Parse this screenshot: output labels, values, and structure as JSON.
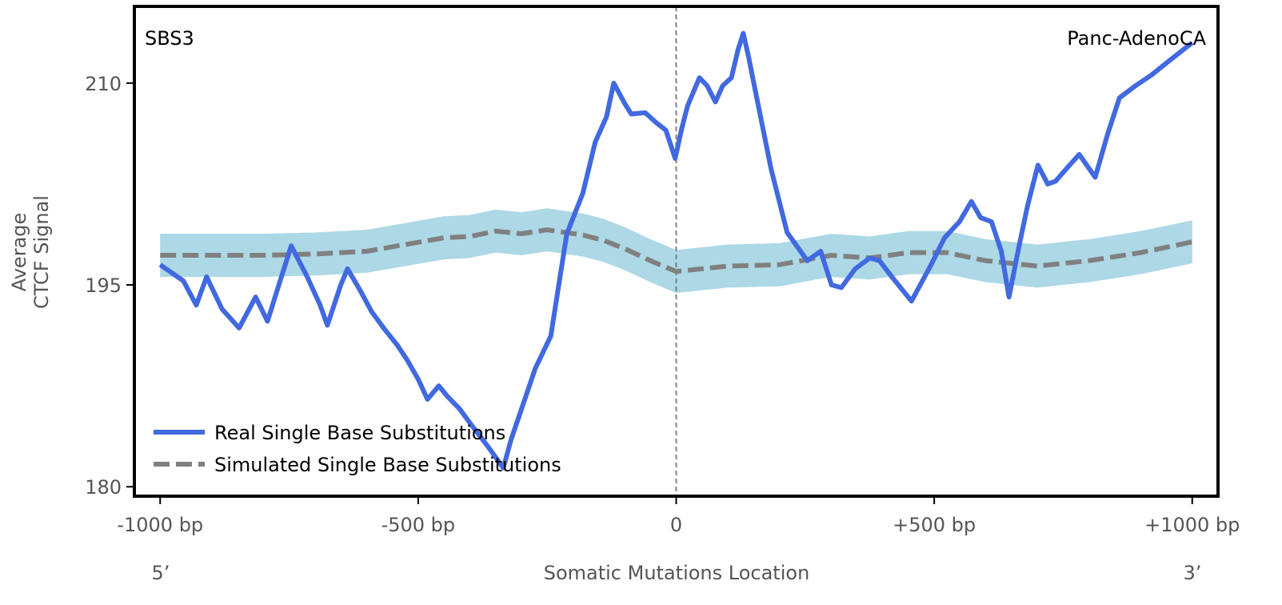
{
  "chart_data": {
    "type": "line",
    "title": "",
    "annotations": {
      "top_left": "SBS3",
      "top_right": "Panc-AdenoCA"
    },
    "xlabel": "Somatic Mutations Location",
    "xlabel_left": "5’",
    "xlabel_right": "3’",
    "ylabel_lines": [
      "Average",
      "CTCF Signal"
    ],
    "xlim": [
      -1050,
      1050
    ],
    "ylim": [
      179.3,
      215.7
    ],
    "xticks": [
      -1000,
      -500,
      0,
      500,
      1000
    ],
    "xtick_labels": [
      "-1000 bp",
      "-500 bp",
      "0",
      "+500 bp",
      "+1000 bp"
    ],
    "yticks": [
      180,
      195,
      210
    ],
    "ytick_labels": [
      "180",
      "195",
      "210"
    ],
    "vline_x": 0,
    "legend_placement": "lower-left",
    "colors": {
      "real": "#4169e1",
      "simulated": "#808080",
      "band": "#add8e6",
      "vline": "#808080"
    },
    "series": [
      {
        "name": "Real Single Base Substitutions",
        "style": "solid",
        "x": [
          -1000,
          -955,
          -930,
          -910,
          -880,
          -847,
          -815,
          -792,
          -770,
          -746,
          -715,
          -690,
          -676,
          -650,
          -637,
          -614,
          -590,
          -567,
          -540,
          -521,
          -500,
          -482,
          -460,
          -443,
          -420,
          -397,
          -365,
          -335,
          -320,
          -304,
          -273,
          -243,
          -212,
          -181,
          -157,
          -135,
          -121,
          -100,
          -87,
          -60,
          -40,
          -20,
          -2,
          10,
          22,
          45,
          60,
          76,
          90,
          107,
          120,
          130,
          140,
          153,
          184,
          215,
          254,
          280,
          301,
          320,
          347,
          375,
          394,
          420,
          456,
          494,
          520,
          549,
          572,
          590,
          611,
          630,
          645,
          665,
          681,
          701,
          720,
          735,
          760,
          781,
          812,
          836,
          859,
          890,
          921,
          960,
          1000
        ],
        "values": [
          196.5,
          195.3,
          193.5,
          195.6,
          193.2,
          191.8,
          194.1,
          192.3,
          195.0,
          197.9,
          195.6,
          193.5,
          192.0,
          195.0,
          196.2,
          194.7,
          193.0,
          191.8,
          190.5,
          189.4,
          188.0,
          186.5,
          187.5,
          186.7,
          185.8,
          184.6,
          183.0,
          181.4,
          183.5,
          185.3,
          188.8,
          191.2,
          198.8,
          201.8,
          205.6,
          207.5,
          210.0,
          208.5,
          207.7,
          207.8,
          207.1,
          206.5,
          204.4,
          206.5,
          208.3,
          210.4,
          209.8,
          208.6,
          209.8,
          210.4,
          212.5,
          213.7,
          212.0,
          209.5,
          203.6,
          198.9,
          196.8,
          197.5,
          195.0,
          194.8,
          196.2,
          197.0,
          196.8,
          195.5,
          193.8,
          196.5,
          198.5,
          199.7,
          201.2,
          200.0,
          199.7,
          197.5,
          194.1,
          198.0,
          200.9,
          203.9,
          202.5,
          202.7,
          203.8,
          204.7,
          203.0,
          206.2,
          208.9,
          209.8,
          210.6,
          211.8,
          213.0
        ]
      },
      {
        "name": "Simulated Single Base Substitutions",
        "style": "dashed",
        "x": [
          -1000,
          -900,
          -800,
          -700,
          -600,
          -525,
          -450,
          -400,
          -350,
          -300,
          -250,
          -180,
          -140,
          -100,
          -50,
          0,
          50,
          100,
          200,
          300,
          375,
          450,
          525,
          600,
          700,
          800,
          900,
          1000
        ],
        "values": [
          197.2,
          197.2,
          197.2,
          197.3,
          197.5,
          198.0,
          198.5,
          198.6,
          199.0,
          198.8,
          199.1,
          198.7,
          198.3,
          197.7,
          196.8,
          196.0,
          196.2,
          196.4,
          196.5,
          197.2,
          197.0,
          197.4,
          197.4,
          196.8,
          196.4,
          196.8,
          197.4,
          198.2
        ],
        "band_halfwidth": 1.6
      }
    ]
  }
}
